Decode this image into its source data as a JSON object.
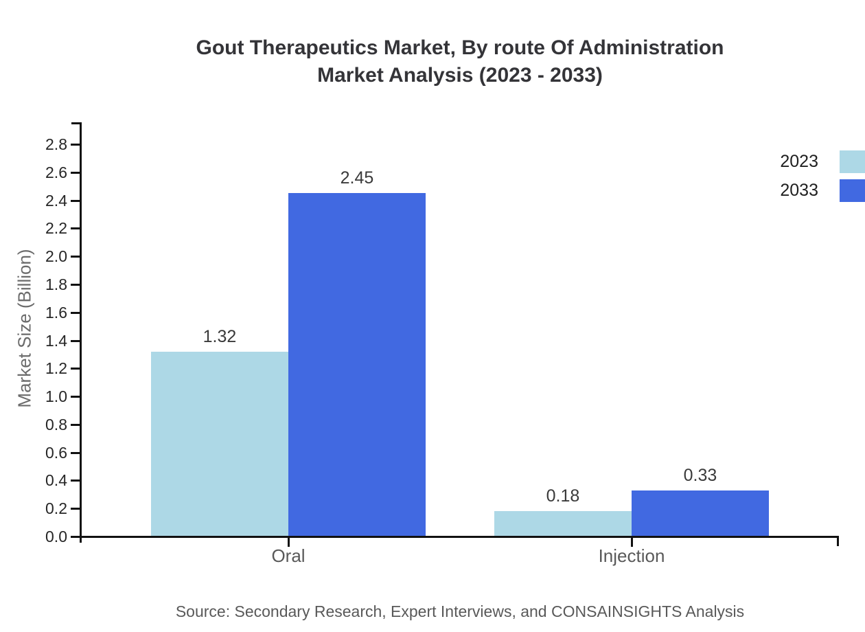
{
  "header": {
    "title_line1": "Gout Therapeutics Market, By route Of Administration",
    "title_line2": "Market Analysis (2023 - 2033)"
  },
  "chart_data": {
    "type": "bar",
    "title": "Gout Therapeutics Market, By route Of Administration Market Analysis (2023 - 2033)",
    "categories": [
      "Oral",
      "Injection"
    ],
    "series": [
      {
        "name": "2023",
        "color": "#ADD8E6",
        "values": [
          1.32,
          0.18
        ]
      },
      {
        "name": "2033",
        "color": "#4169E1",
        "values": [
          2.45,
          0.33
        ]
      }
    ],
    "xlabel": "",
    "ylabel": "Market Size (Billion)",
    "ylim": [
      0,
      2.8
    ],
    "yticks": [
      0,
      0.2,
      0.4,
      0.6,
      0.8,
      1.0,
      1.2,
      1.4,
      1.6,
      1.8,
      2.0,
      2.2,
      2.4,
      2.6,
      2.8
    ],
    "grid": false,
    "legend_position": "right",
    "axis_color": "#111111",
    "source": "Source: Secondary Research, Expert Interviews, and CONSAINSIGHTS Analysis"
  }
}
